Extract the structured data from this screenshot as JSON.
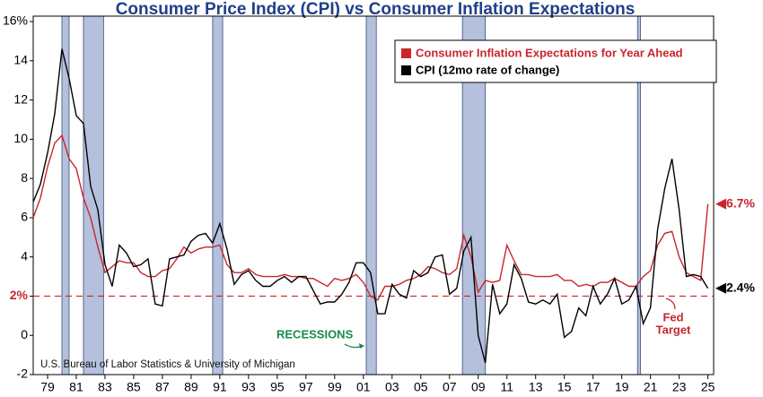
{
  "chart_data": {
    "type": "line",
    "title": "Consumer Price Index (CPI) vs Consumer Inflation Expectations",
    "source": "U.S. Bureau of Labor Statistics & University of Michigan",
    "x": [
      1978,
      1978.5,
      1979,
      1979.5,
      1980,
      1980.5,
      1981,
      1981.5,
      1982,
      1982.5,
      1983,
      1983.5,
      1984,
      1984.5,
      1985,
      1985.5,
      1986,
      1986.5,
      1987,
      1987.5,
      1988,
      1988.5,
      1989,
      1989.5,
      1990,
      1990.5,
      1991,
      1991.5,
      1992,
      1992.5,
      1993,
      1993.5,
      1994,
      1994.5,
      1995,
      1995.5,
      1996,
      1996.5,
      1997,
      1997.5,
      1998,
      1998.5,
      1999,
      1999.5,
      2000,
      2000.5,
      2001,
      2001.5,
      2002,
      2002.5,
      2003,
      2003.5,
      2004,
      2004.5,
      2005,
      2005.5,
      2006,
      2006.5,
      2007,
      2007.5,
      2008,
      2008.5,
      2009,
      2009.5,
      2010,
      2010.5,
      2011,
      2011.5,
      2012,
      2012.5,
      2013,
      2013.5,
      2014,
      2014.5,
      2015,
      2015.5,
      2016,
      2016.5,
      2017,
      2017.5,
      2018,
      2018.5,
      2019,
      2019.5,
      2020,
      2020.5,
      2021,
      2021.5,
      2022,
      2022.5,
      2023,
      2023.5,
      2024,
      2024.5,
      2025
    ],
    "series": [
      {
        "name": "Consumer Inflation Expectations for Year Ahead",
        "color": "#c8262c",
        "values": [
          6.0,
          7.0,
          8.6,
          9.8,
          10.2,
          9.0,
          8.5,
          7.0,
          6.0,
          4.5,
          3.2,
          3.5,
          3.8,
          3.7,
          3.7,
          3.2,
          3.0,
          3.0,
          3.3,
          3.4,
          3.9,
          4.5,
          4.2,
          4.4,
          4.5,
          4.5,
          4.6,
          3.6,
          3.2,
          3.2,
          3.4,
          3.1,
          3.0,
          3.0,
          3.0,
          3.1,
          3.0,
          3.0,
          2.9,
          2.9,
          2.7,
          2.5,
          2.9,
          2.8,
          2.9,
          3.1,
          2.7,
          2.0,
          1.8,
          2.5,
          2.5,
          2.6,
          2.8,
          2.9,
          3.1,
          3.5,
          3.4,
          3.2,
          3.1,
          3.4,
          5.1,
          4.0,
          2.2,
          2.8,
          2.7,
          2.8,
          4.6,
          3.8,
          3.1,
          3.1,
          3.0,
          3.0,
          3.0,
          3.1,
          2.8,
          2.8,
          2.5,
          2.6,
          2.5,
          2.7,
          2.7,
          2.9,
          2.7,
          2.5,
          2.5,
          3.0,
          3.3,
          4.6,
          5.2,
          5.3,
          4.0,
          3.2,
          3.0,
          2.8,
          6.7
        ]
      },
      {
        "name": "CPI (12mo rate of change)",
        "color": "#000000",
        "values": [
          6.8,
          7.7,
          9.3,
          11.3,
          14.6,
          13.1,
          11.2,
          10.8,
          7.6,
          6.4,
          3.6,
          2.5,
          4.6,
          4.2,
          3.5,
          3.6,
          3.9,
          1.6,
          1.5,
          3.9,
          4.0,
          4.1,
          4.8,
          5.1,
          5.2,
          4.7,
          5.7,
          4.4,
          2.6,
          3.1,
          3.3,
          2.8,
          2.5,
          2.5,
          2.8,
          3.0,
          2.7,
          3.0,
          3.0,
          2.3,
          1.6,
          1.7,
          1.7,
          2.1,
          2.7,
          3.7,
          3.7,
          3.2,
          1.1,
          1.1,
          2.6,
          2.1,
          1.9,
          3.3,
          3.0,
          3.2,
          4.0,
          4.1,
          2.1,
          2.4,
          4.3,
          5.0,
          0.0,
          -1.4,
          2.6,
          1.1,
          1.6,
          3.6,
          2.9,
          1.7,
          1.6,
          1.8,
          1.6,
          2.1,
          -0.1,
          0.2,
          1.4,
          1.0,
          2.5,
          1.6,
          2.1,
          2.9,
          1.6,
          1.8,
          2.5,
          0.6,
          1.4,
          5.4,
          7.5,
          9.0,
          6.4,
          3.0,
          3.1,
          3.0,
          2.4
        ]
      }
    ],
    "xlim": [
      1978,
      2025.4
    ],
    "xticks": [
      {
        "value": 1979,
        "label": "79"
      },
      {
        "value": 1981,
        "label": "81"
      },
      {
        "value": 1983,
        "label": "83"
      },
      {
        "value": 1985,
        "label": "85"
      },
      {
        "value": 1987,
        "label": "87"
      },
      {
        "value": 1989,
        "label": "89"
      },
      {
        "value": 1991,
        "label": "91"
      },
      {
        "value": 1993,
        "label": "93"
      },
      {
        "value": 1995,
        "label": "95"
      },
      {
        "value": 1997,
        "label": "97"
      },
      {
        "value": 1999,
        "label": "99"
      },
      {
        "value": 2001,
        "label": "01"
      },
      {
        "value": 2003,
        "label": "03"
      },
      {
        "value": 2005,
        "label": "05"
      },
      {
        "value": 2007,
        "label": "07"
      },
      {
        "value": 2009,
        "label": "09"
      },
      {
        "value": 2011,
        "label": "11"
      },
      {
        "value": 2013,
        "label": "13"
      },
      {
        "value": 2015,
        "label": "15"
      },
      {
        "value": 2017,
        "label": "17"
      },
      {
        "value": 2019,
        "label": "19"
      },
      {
        "value": 2021,
        "label": "21"
      },
      {
        "value": 2023,
        "label": "23"
      },
      {
        "value": 2025,
        "label": "25"
      }
    ],
    "ylim": [
      -2,
      16
    ],
    "yticks": [
      -2,
      0,
      {
        "value": 2,
        "label": "2%"
      },
      4,
      6,
      8,
      10,
      12,
      14,
      {
        "value": 16,
        "label": "16%"
      }
    ],
    "target_line": 2,
    "recessions": [
      [
        1980.0,
        1980.5
      ],
      [
        1981.5,
        1982.9
      ],
      [
        1990.5,
        1991.2
      ],
      [
        2001.2,
        2001.9
      ],
      [
        2007.9,
        2009.5
      ],
      [
        2020.1,
        2020.3
      ]
    ],
    "annotations": {
      "recessions": "RECESSIONS",
      "fed_target_1": "Fed",
      "fed_target_2": "Target",
      "expectations_latest": "6.7%",
      "cpi_latest": "2.4%"
    }
  }
}
